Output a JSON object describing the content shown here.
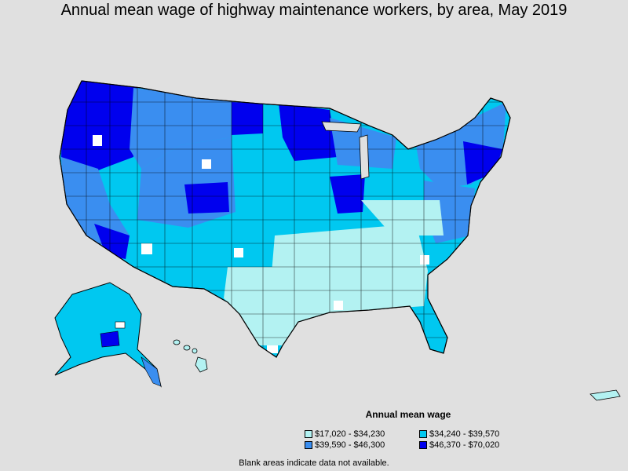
{
  "title": "Annual mean wage of highway maintenance workers, by area, May 2019",
  "legend": {
    "title": "Annual mean wage",
    "items": [
      {
        "label": "$17,020 - $34,230",
        "color": "#b3f2f2"
      },
      {
        "label": "$34,240 - $39,570",
        "color": "#00c8f0"
      },
      {
        "label": "$39,590 - $46,300",
        "color": "#3a8ef0"
      },
      {
        "label": "$46,370 - $70,020",
        "color": "#0000ee"
      }
    ]
  },
  "footnote": "Blank areas indicate data not available.",
  "colors": {
    "background": "#e0e0e0",
    "boundary": "#000000",
    "no_data": "#ffffff"
  }
}
